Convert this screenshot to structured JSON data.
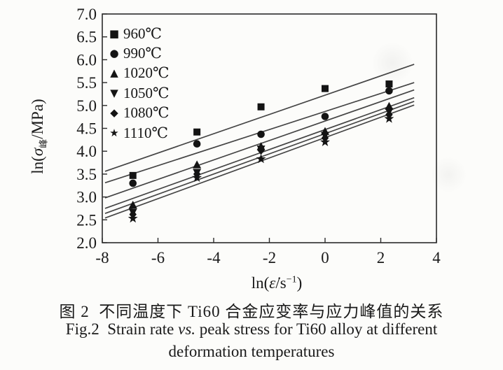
{
  "figure": {
    "caption_zh": "图 2  不同温度下 Ti60 合金应变率与应力峰值的关系",
    "caption_en": {
      "pre": "Fig.2  Strain rate ",
      "vs": "vs.",
      "post": " peak stress for Ti60 alloy at different"
    },
    "caption_en_line2": "deformation temperatures"
  },
  "chart_data": {
    "type": "scatter",
    "title": "",
    "xlabel": {
      "pre": "ln(",
      "var": "ε̇",
      "mid": "/s",
      "sup": "−1",
      "post": ")"
    },
    "ylabel": {
      "pre": "ln(",
      "sigma": "σ",
      "sub": "峰",
      "post": "/MPa)"
    },
    "xlim": [
      -8,
      4
    ],
    "ylim": [
      2.0,
      7.0
    ],
    "x_ticks": [
      -8,
      -6,
      -4,
      -2,
      0,
      2,
      4
    ],
    "y_ticks": [
      2.0,
      2.5,
      3.0,
      3.5,
      4.0,
      4.5,
      5.0,
      5.5,
      6.0,
      6.5,
      7.0
    ],
    "grid": false,
    "legend_position": "top-left",
    "x": [
      -6.9,
      -4.6,
      -2.3,
      0,
      2.3
    ],
    "series": [
      {
        "label": "960℃",
        "marker": "square",
        "marker_glyph": "■",
        "values": [
          3.47,
          4.42,
          4.97,
          5.37,
          5.47
        ],
        "fit_line": {
          "x": [
            -7.9,
            3.2
          ],
          "y": [
            3.56,
            5.9
          ]
        }
      },
      {
        "label": "990℃",
        "marker": "circle",
        "marker_glyph": "●",
        "values": [
          3.3,
          4.16,
          4.37,
          4.76,
          5.32
        ],
        "fit_line": {
          "x": [
            -7.9,
            3.2
          ],
          "y": [
            3.31,
            5.5
          ]
        }
      },
      {
        "label": "1020℃",
        "marker": "triangle-up",
        "marker_glyph": "▲",
        "values": [
          2.82,
          3.7,
          4.1,
          4.43,
          4.98
        ],
        "fit_line": {
          "x": [
            -7.9,
            3.2
          ],
          "y": [
            2.98,
            5.34
          ]
        }
      },
      {
        "label": "1050℃",
        "marker": "triangle-down",
        "marker_glyph": "▼",
        "values": [
          2.67,
          3.54,
          4.05,
          4.35,
          4.87
        ],
        "fit_line": {
          "x": [
            -7.9,
            3.2
          ],
          "y": [
            2.75,
            5.17
          ]
        }
      },
      {
        "label": "1080℃",
        "marker": "diamond",
        "marker_glyph": "◆",
        "values": [
          2.62,
          3.5,
          4.02,
          4.29,
          4.8
        ],
        "fit_line": {
          "x": [
            -7.9,
            3.2
          ],
          "y": [
            2.64,
            5.09
          ]
        }
      },
      {
        "label": "1110℃",
        "marker": "star",
        "marker_glyph": "★",
        "values": [
          2.53,
          3.42,
          3.83,
          4.2,
          4.71
        ],
        "fit_line": {
          "x": [
            -7.9,
            3.2
          ],
          "y": [
            2.54,
            5.01
          ]
        }
      }
    ],
    "colors": {
      "ink": "#1a1a1a",
      "line": "#454545",
      "marker": "#141414",
      "frame": "#2b2b2b"
    }
  }
}
